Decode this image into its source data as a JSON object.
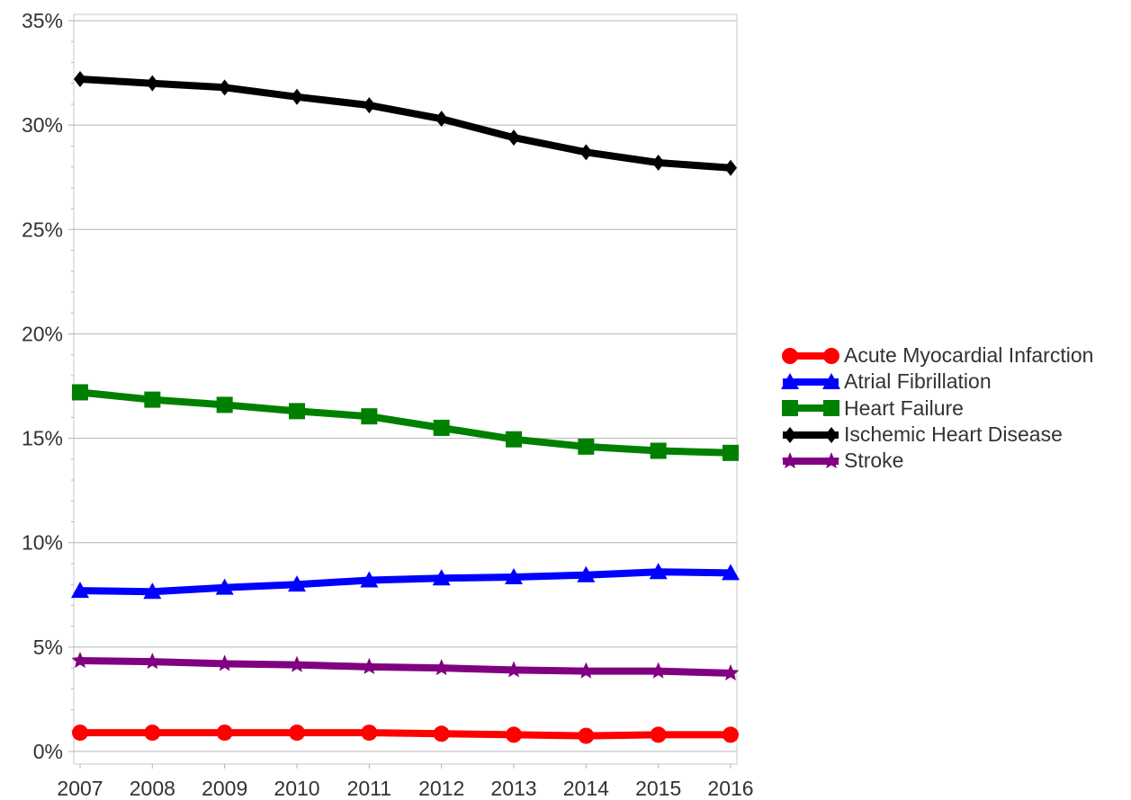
{
  "chart_data": {
    "type": "line",
    "x": [
      "2007",
      "2008",
      "2009",
      "2010",
      "2011",
      "2012",
      "2013",
      "2014",
      "2015",
      "2016"
    ],
    "ylim": [
      0,
      35
    ],
    "yticks": [
      0,
      5,
      10,
      15,
      20,
      25,
      30,
      35
    ],
    "ytick_labels": [
      "0%",
      "5%",
      "10%",
      "15%",
      "20%",
      "25%",
      "30%",
      "35%"
    ],
    "grid": "horizontal",
    "legend_position": "right",
    "series": [
      {
        "name": "Acute Myocardial Infarction",
        "color": "#ff0000",
        "marker": "circle",
        "values": [
          0.9,
          0.9,
          0.9,
          0.9,
          0.9,
          0.85,
          0.8,
          0.75,
          0.8,
          0.8
        ]
      },
      {
        "name": "Atrial Fibrillation",
        "color": "#0000ff",
        "marker": "triangle",
        "values": [
          7.7,
          7.65,
          7.85,
          8.0,
          8.2,
          8.3,
          8.35,
          8.45,
          8.6,
          8.55
        ]
      },
      {
        "name": "Heart Failure",
        "color": "#008000",
        "marker": "square",
        "values": [
          17.2,
          16.85,
          16.6,
          16.3,
          16.05,
          15.5,
          14.95,
          14.6,
          14.4,
          14.3
        ]
      },
      {
        "name": "Ischemic Heart Disease",
        "color": "#000000",
        "marker": "diamond",
        "values": [
          32.2,
          32.0,
          31.8,
          31.35,
          30.95,
          30.3,
          29.4,
          28.7,
          28.2,
          27.95
        ]
      },
      {
        "name": "Stroke",
        "color": "#800080",
        "marker": "star",
        "values": [
          4.35,
          4.3,
          4.2,
          4.15,
          4.05,
          4.0,
          3.9,
          3.85,
          3.85,
          3.75
        ]
      }
    ]
  }
}
